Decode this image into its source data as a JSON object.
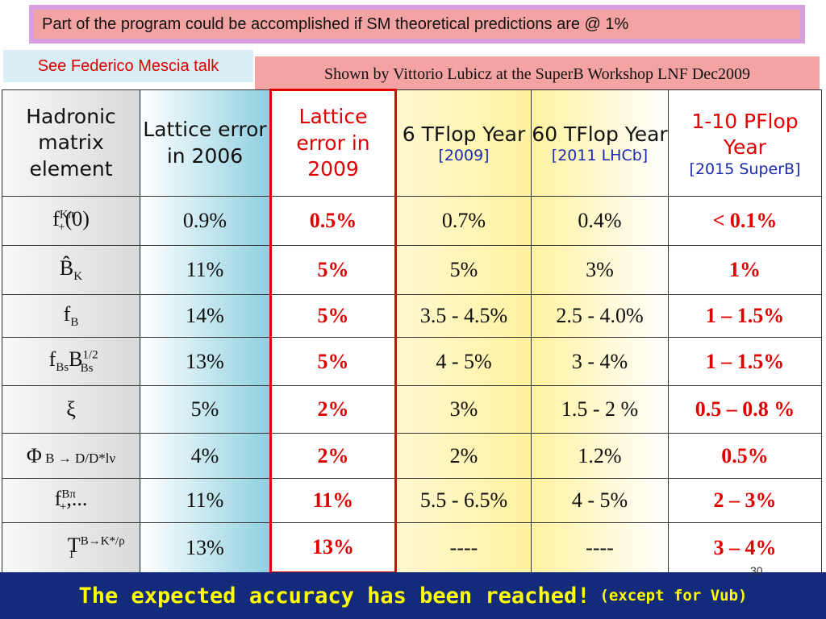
{
  "top_note": "Part of the program could be accomplished if SM theoretical predictions are @ 1%",
  "federico_note": "See Federico Mescia talk",
  "lubicz_note": "Shown by Vittorio Lubicz at the SuperB Workshop LNF Dec2009",
  "header": {
    "col1": "Hadronic matrix element",
    "col2": "Lattice error in 2006",
    "col3": "Lattice error in 2009",
    "col4": "6 TFlop Year",
    "col4_sub": "[2009]",
    "col5": "60 TFlop Year",
    "col5_sub": "[2011 LHCb]",
    "col6": "1-10 PFlop Year",
    "col6_sub": "[2015 SuperB]"
  },
  "rows": [
    {
      "element": "f+Kπ(0)",
      "e2006": "0.9%",
      "e2009": "0.5%",
      "t6": "0.7%",
      "t60": "0.4%",
      "pflop": "< 0.1%"
    },
    {
      "element": "B̂K",
      "e2006": "11%",
      "e2009": "5%",
      "t6": "5%",
      "t60": "3%",
      "pflop": "1%"
    },
    {
      "element": "fB",
      "e2006": "14%",
      "e2009": "5%",
      "t6": "3.5 - 4.5%",
      "t60": "2.5 - 4.0%",
      "pflop": "1 – 1.5%"
    },
    {
      "element": "fBsBBs1/2",
      "e2006": "13%",
      "e2009": "5%",
      "t6": "4 - 5%",
      "t60": "3 - 4%",
      "pflop": "1 – 1.5%"
    },
    {
      "element": "ξ",
      "e2006": "5%",
      "e2009": "2%",
      "t6": "3%",
      "t60": "1.5 - 2 %",
      "pflop": "0.5 – 0.8 %"
    },
    {
      "element": "Φ B → D/D*lν",
      "e2006": "4%",
      "e2009": "2%",
      "t6": "2%",
      "t60": "1.2%",
      "pflop": "0.5%"
    },
    {
      "element": "f+Bπ,...",
      "e2006": "11%",
      "e2009": "11%",
      "t6": "5.5 - 6.5%",
      "t60": "4 - 5%",
      "pflop": "2 – 3%"
    },
    {
      "element": "T1B→K*/ρ",
      "e2006": "13%",
      "e2009": "13%",
      "t6": "----",
      "t60": "----",
      "pflop": "3 – 4%"
    }
  ],
  "elements": {
    "r0": {
      "base": "f",
      "sup": "Kπ",
      "sub": "+",
      "tail": "(0)"
    },
    "r1": {
      "base": "B̂",
      "sub": "K"
    },
    "r2": {
      "base": "f",
      "sub": "B"
    },
    "r3": {
      "base": "f",
      "sub": "Bs",
      "base2": "B",
      "sup2": "1/2",
      "sub2": "Bs"
    },
    "r4": {
      "base": "ξ"
    },
    "r5": {
      "base": "Φ",
      "tail": " B → D/D*lν"
    },
    "r6": {
      "base": "f",
      "sup": "Bπ",
      "sub": "+",
      "tail": ",..."
    },
    "r7": {
      "base": "T",
      "sup": "B→K*/ρ",
      "sub": "1"
    }
  },
  "footer": {
    "main": "The expected accuracy has been reached!",
    "small": "(except for Vub)"
  },
  "page_number": "30"
}
